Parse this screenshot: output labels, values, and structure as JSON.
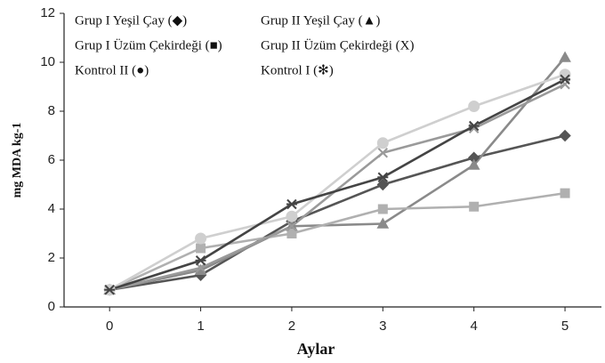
{
  "chart_data": {
    "type": "line",
    "x_label": "Aylar",
    "y_label": "mg MDA kg-1",
    "x": [
      0,
      1,
      2,
      3,
      4,
      5
    ],
    "xlim": [
      -0.5,
      5.4
    ],
    "xticks": [
      0,
      1,
      2,
      3,
      4,
      5
    ],
    "ylim": [
      0,
      12
    ],
    "yticks": [
      0,
      2,
      4,
      6,
      8,
      10,
      12
    ],
    "grid": false,
    "series": [
      {
        "name": "Grup I Yeşil Çay (◆)",
        "color": "#555555",
        "marker": "diamond",
        "values": [
          0.7,
          1.3,
          3.5,
          5.0,
          6.1,
          7.0
        ]
      },
      {
        "name": "Grup II Yeşil Çay (▲)",
        "color": "#8a8a8a",
        "marker": "triangle",
        "values": [
          0.7,
          1.5,
          3.3,
          3.4,
          5.8,
          10.2
        ]
      },
      {
        "name": "Grup I Üzüm Çekirdeği (■)",
        "color": "#b0b0b0",
        "marker": "square",
        "values": [
          0.7,
          2.4,
          3.0,
          4.0,
          4.1,
          4.65
        ]
      },
      {
        "name": "Grup II Üzüm Çekirdeği (X)",
        "color": "#9a9a9a",
        "marker": "x",
        "values": [
          0.7,
          1.6,
          3.3,
          6.3,
          7.3,
          9.1
        ]
      },
      {
        "name": "Kontrol II (●)",
        "color": "#cfcfcf",
        "marker": "circle",
        "values": [
          0.7,
          2.8,
          3.7,
          6.7,
          8.2,
          9.5
        ]
      },
      {
        "name": "Kontrol I (✻)",
        "color": "#444444",
        "marker": "star",
        "values": [
          0.7,
          1.9,
          4.2,
          5.3,
          7.4,
          9.3
        ]
      }
    ]
  }
}
